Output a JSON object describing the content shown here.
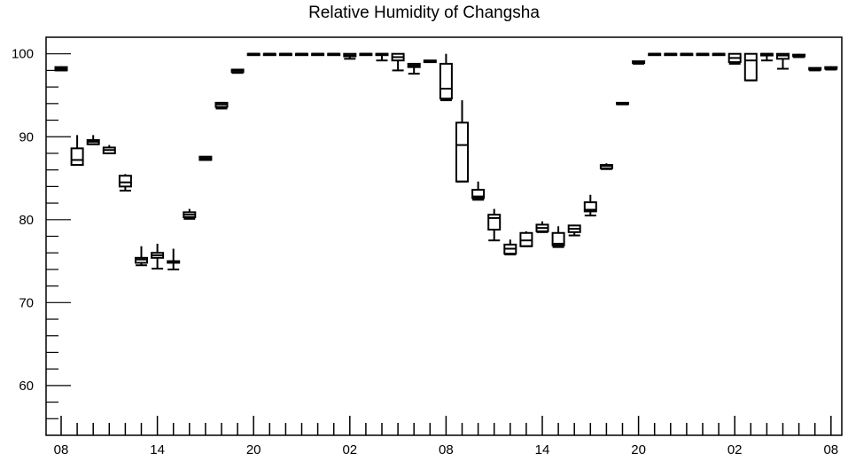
{
  "chart_data": {
    "type": "box",
    "title": "Relative Humidity of Changsha",
    "xlabel": "",
    "ylabel": "",
    "ylim": [
      54,
      102
    ],
    "yticks": [
      60,
      70,
      80,
      90,
      100
    ],
    "xticks": [
      "08",
      "14",
      "20",
      "02",
      "08",
      "14",
      "20",
      "02",
      "08"
    ],
    "grid": false,
    "boxes": [
      {
        "time": "08",
        "min": 98.0,
        "q1": 98.0,
        "median": 98.2,
        "q3": 98.4,
        "max": 98.5
      },
      {
        "time": "09",
        "min": 86.6,
        "q1": 86.6,
        "median": 87.2,
        "q3": 88.6,
        "max": 90.2
      },
      {
        "time": "10",
        "min": 89.1,
        "q1": 89.1,
        "median": 89.4,
        "q3": 89.6,
        "max": 90.2
      },
      {
        "time": "11",
        "min": 88.0,
        "q1": 88.0,
        "median": 88.4,
        "q3": 88.7,
        "max": 89.0
      },
      {
        "time": "12",
        "min": 83.5,
        "q1": 84.0,
        "median": 84.5,
        "q3": 85.3,
        "max": 85.5
      },
      {
        "time": "13",
        "min": 74.5,
        "q1": 74.8,
        "median": 75.2,
        "q3": 75.4,
        "max": 76.8
      },
      {
        "time": "14",
        "min": 74.1,
        "q1": 75.4,
        "median": 75.7,
        "q3": 76.0,
        "max": 77.1
      },
      {
        "time": "15",
        "min": 74.0,
        "q1": 74.8,
        "median": 74.9,
        "q3": 75.0,
        "max": 76.5
      },
      {
        "time": "16",
        "min": 80.1,
        "q1": 80.3,
        "median": 80.6,
        "q3": 80.9,
        "max": 81.3
      },
      {
        "time": "17",
        "min": 87.2,
        "q1": 87.2,
        "median": 87.4,
        "q3": 87.6,
        "max": 87.6
      },
      {
        "time": "18",
        "min": 93.4,
        "q1": 93.6,
        "median": 93.9,
        "q3": 94.1,
        "max": 94.2
      },
      {
        "time": "19",
        "min": 97.7,
        "q1": 97.8,
        "median": 98.0,
        "q3": 98.1,
        "max": 98.2
      },
      {
        "time": "20",
        "min": 100,
        "q1": 100,
        "median": 100,
        "q3": 100,
        "max": 100
      },
      {
        "time": "21",
        "min": 100,
        "q1": 100,
        "median": 100,
        "q3": 100,
        "max": 100
      },
      {
        "time": "22",
        "min": 100,
        "q1": 100,
        "median": 100,
        "q3": 100,
        "max": 100
      },
      {
        "time": "23",
        "min": 100,
        "q1": 100,
        "median": 100,
        "q3": 100,
        "max": 100
      },
      {
        "time": "00",
        "min": 100,
        "q1": 100,
        "median": 100,
        "q3": 100,
        "max": 100
      },
      {
        "time": "01",
        "min": 100,
        "q1": 100,
        "median": 100,
        "q3": 100,
        "max": 100
      },
      {
        "time": "02",
        "min": 99.4,
        "q1": 99.7,
        "median": 99.8,
        "q3": 100,
        "max": 100
      },
      {
        "time": "03",
        "min": 100,
        "q1": 100,
        "median": 100,
        "q3": 100,
        "max": 100
      },
      {
        "time": "04",
        "min": 99.2,
        "q1": 100,
        "median": 100,
        "q3": 100,
        "max": 100
      },
      {
        "time": "05",
        "min": 98.0,
        "q1": 99.2,
        "median": 99.6,
        "q3": 100,
        "max": 100
      },
      {
        "time": "06",
        "min": 97.6,
        "q1": 98.4,
        "median": 98.6,
        "q3": 98.8,
        "max": 98.9
      },
      {
        "time": "07",
        "min": 99.0,
        "q1": 99.0,
        "median": 99.1,
        "q3": 99.2,
        "max": 99.2
      },
      {
        "time": "08",
        "min": 94.4,
        "q1": 94.6,
        "median": 95.8,
        "q3": 98.8,
        "max": 100
      },
      {
        "time": "09",
        "min": 84.6,
        "q1": 84.6,
        "median": 89.0,
        "q3": 91.7,
        "max": 94.4
      },
      {
        "time": "10",
        "min": 82.4,
        "q1": 82.6,
        "median": 82.8,
        "q3": 83.6,
        "max": 84.6
      },
      {
        "time": "11",
        "min": 77.5,
        "q1": 78.8,
        "median": 80.2,
        "q3": 80.6,
        "max": 81.3
      },
      {
        "time": "12",
        "min": 75.8,
        "q1": 75.9,
        "median": 76.5,
        "q3": 77.0,
        "max": 77.6
      },
      {
        "time": "13",
        "min": 76.8,
        "q1": 76.8,
        "median": 77.5,
        "q3": 78.4,
        "max": 78.6
      },
      {
        "time": "14",
        "min": 78.5,
        "q1": 78.6,
        "median": 79.0,
        "q3": 79.4,
        "max": 79.8
      },
      {
        "time": "15",
        "min": 76.7,
        "q1": 76.9,
        "median": 77.1,
        "q3": 78.4,
        "max": 79.2
      },
      {
        "time": "16",
        "min": 78.1,
        "q1": 78.5,
        "median": 78.9,
        "q3": 79.3,
        "max": 79.4
      },
      {
        "time": "17",
        "min": 80.5,
        "q1": 81.0,
        "median": 81.2,
        "q3": 82.1,
        "max": 83.0
      },
      {
        "time": "18",
        "min": 86.1,
        "q1": 86.2,
        "median": 86.5,
        "q3": 86.6,
        "max": 86.8
      },
      {
        "time": "19",
        "min": 93.9,
        "q1": 94.0,
        "median": 94.0,
        "q3": 94.1,
        "max": 94.1
      },
      {
        "time": "20",
        "min": 98.8,
        "q1": 98.9,
        "median": 99.0,
        "q3": 99.1,
        "max": 99.1
      },
      {
        "time": "21",
        "min": 100,
        "q1": 100,
        "median": 100,
        "q3": 100,
        "max": 100
      },
      {
        "time": "22",
        "min": 100,
        "q1": 100,
        "median": 100,
        "q3": 100,
        "max": 100
      },
      {
        "time": "23",
        "min": 100,
        "q1": 100,
        "median": 100,
        "q3": 100,
        "max": 100
      },
      {
        "time": "00",
        "min": 100,
        "q1": 100,
        "median": 100,
        "q3": 100,
        "max": 100
      },
      {
        "time": "01",
        "min": 100,
        "q1": 100,
        "median": 100,
        "q3": 100,
        "max": 100
      },
      {
        "time": "02",
        "min": 98.8,
        "q1": 99.0,
        "median": 99.5,
        "q3": 100,
        "max": 100
      },
      {
        "time": "03",
        "min": 96.8,
        "q1": 96.8,
        "median": 99.2,
        "q3": 100,
        "max": 100
      },
      {
        "time": "04",
        "min": 99.2,
        "q1": 99.8,
        "median": 100,
        "q3": 100,
        "max": 100
      },
      {
        "time": "05",
        "min": 98.2,
        "q1": 99.4,
        "median": 99.8,
        "q3": 100,
        "max": 100
      },
      {
        "time": "06",
        "min": 99.6,
        "q1": 99.7,
        "median": 99.8,
        "q3": 99.9,
        "max": 100
      },
      {
        "time": "07",
        "min": 98.0,
        "q1": 98.1,
        "median": 98.2,
        "q3": 98.3,
        "max": 98.3
      },
      {
        "time": "08",
        "min": 98.1,
        "q1": 98.2,
        "median": 98.3,
        "q3": 98.4,
        "max": 98.5
      }
    ]
  }
}
